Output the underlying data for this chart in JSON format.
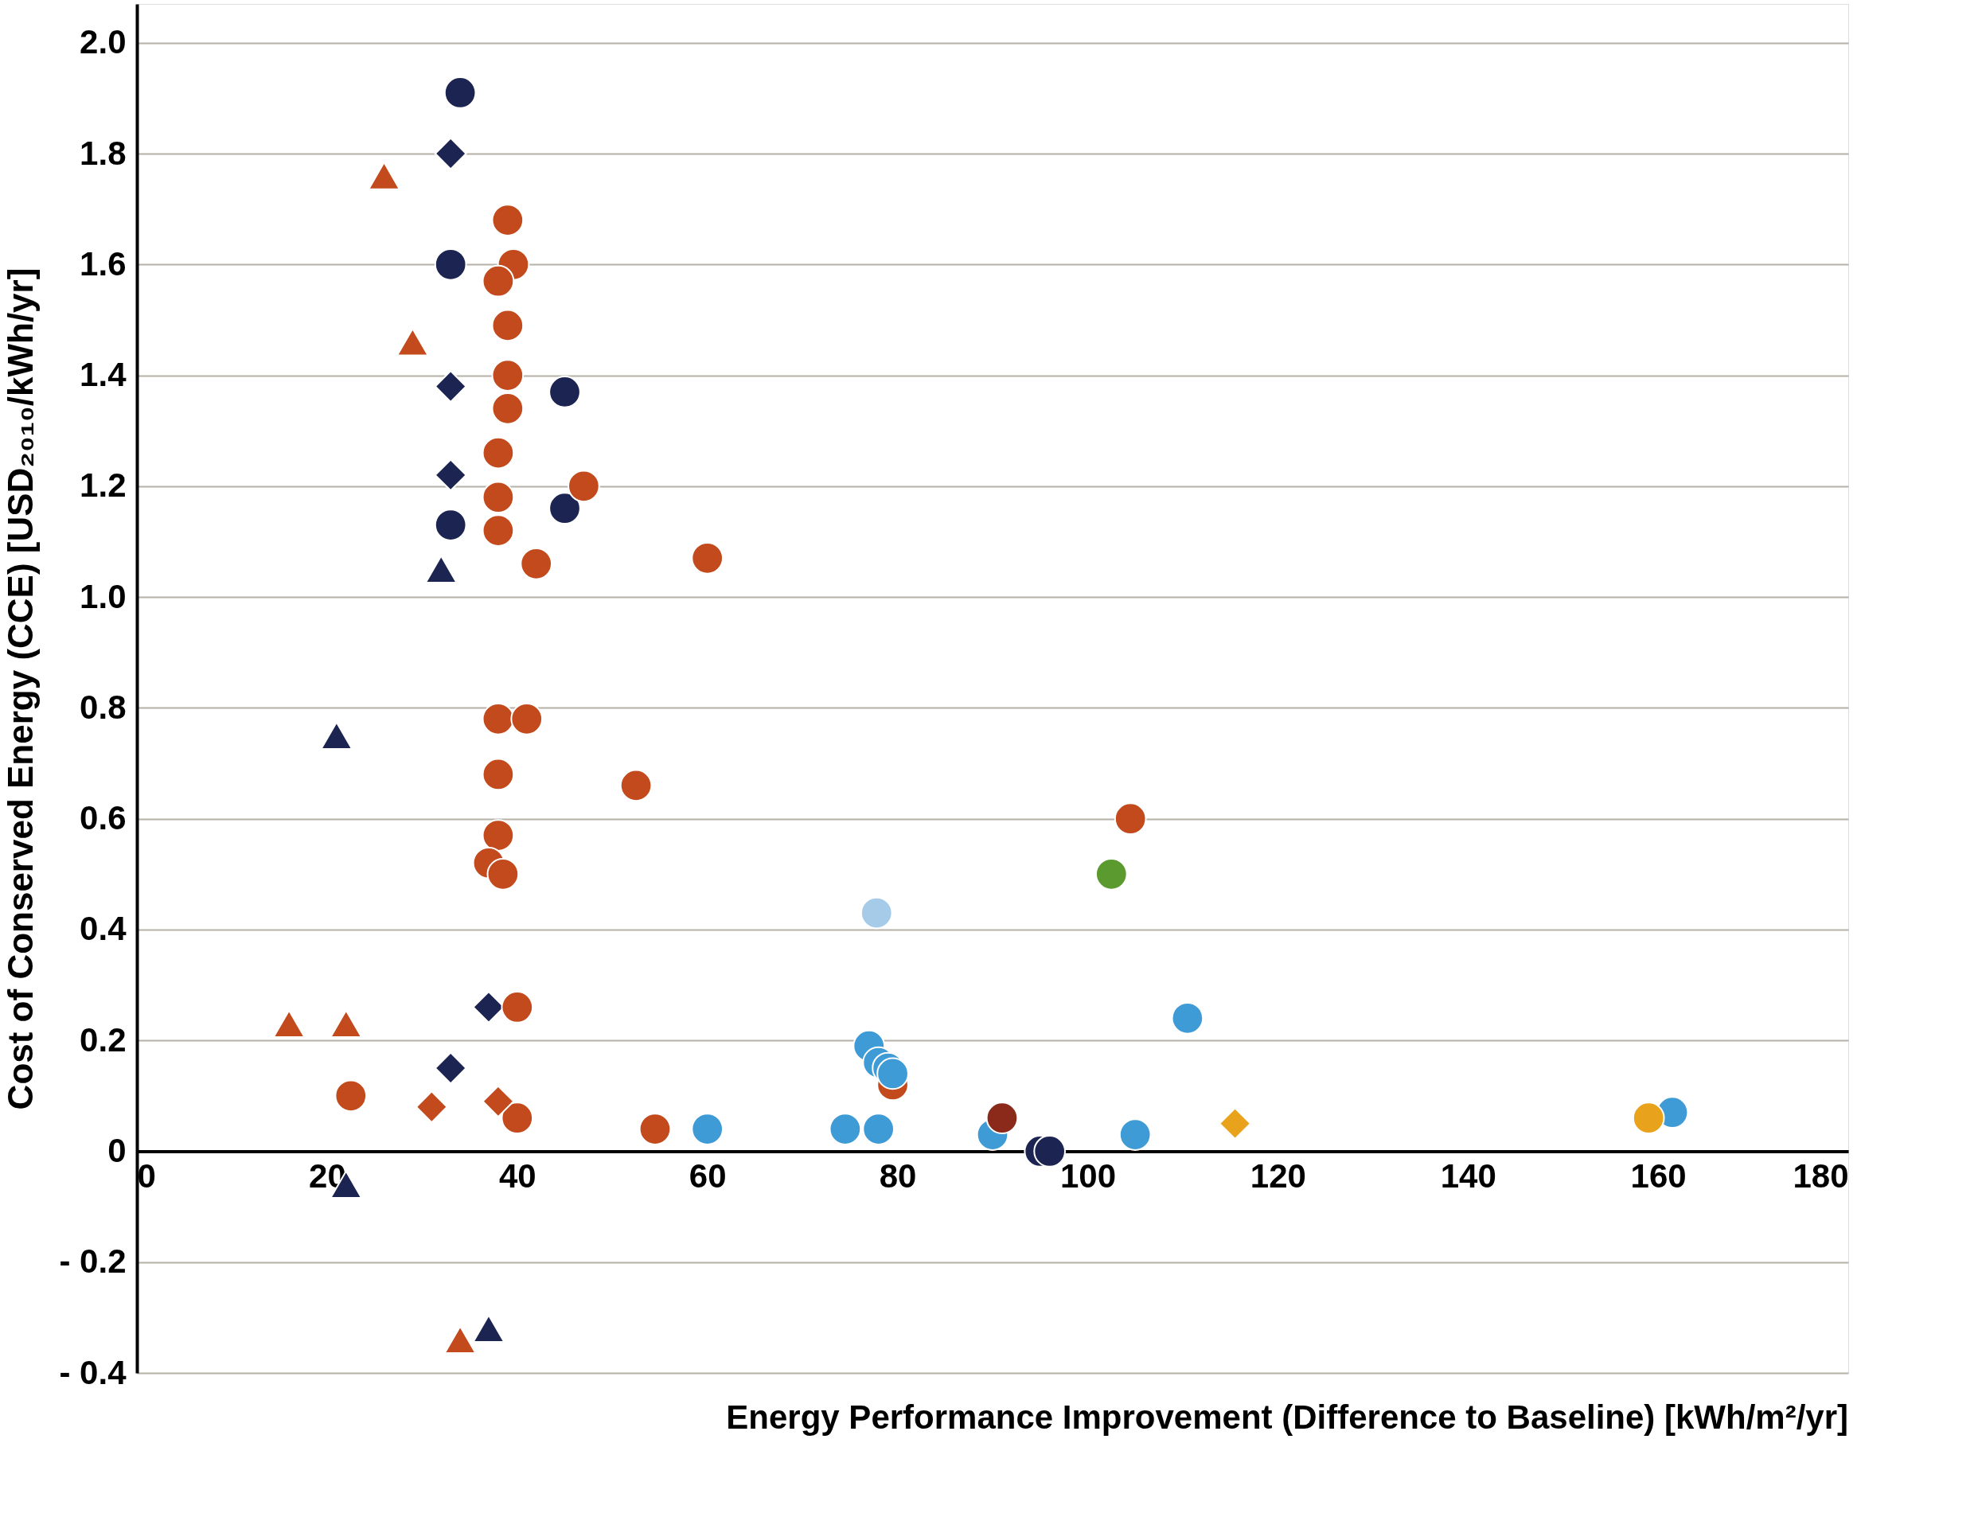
{
  "chart_data": {
    "type": "scatter",
    "xlabel": "Energy Performance Improvement (Difference to Baseline) [kWh/m²/yr]",
    "ylabel": "Cost of Conserved Energy (CCE) [USD₂₀₁₀/kWh/yr]",
    "xlim": [
      0,
      180
    ],
    "ylim": [
      -0.4,
      2.07
    ],
    "xticks": [
      0,
      20,
      40,
      60,
      80,
      100,
      120,
      140,
      160,
      180
    ],
    "yticks": [
      {
        "value": -0.4,
        "label": "- 0.4"
      },
      {
        "value": -0.2,
        "label": "- 0.2"
      },
      0,
      0.2,
      0.4,
      0.6,
      0.8,
      {
        "value": 1.0,
        "label": "1.0"
      },
      1.2,
      1.4,
      1.6,
      1.8,
      {
        "value": 2.0,
        "label": "2.0"
      }
    ],
    "grid": "y",
    "series": [
      {
        "color": "#1c2452",
        "marker": "circle",
        "x": [
          34,
          33,
          45,
          33,
          45,
          95,
          96
        ],
        "values": [
          1.91,
          1.6,
          1.37,
          1.13,
          1.16,
          0.0,
          0.0
        ]
      },
      {
        "color": "#1c2452",
        "marker": "diamond",
        "x": [
          33,
          33,
          33,
          37,
          33
        ],
        "values": [
          1.8,
          1.38,
          1.22,
          0.26,
          0.15
        ]
      },
      {
        "color": "#1c2452",
        "marker": "triangle",
        "x": [
          32,
          21,
          22,
          37
        ],
        "values": [
          1.05,
          0.75,
          -0.06,
          -0.32
        ]
      },
      {
        "color": "#c24a1c",
        "marker": "circle",
        "x": [
          39,
          39.6,
          38,
          39,
          39,
          39,
          38,
          38,
          38,
          42,
          47,
          60,
          38,
          41,
          38,
          52.5,
          38,
          37,
          38.5,
          104.5,
          40,
          40,
          54.5,
          79.5,
          22.5
        ],
        "values": [
          1.68,
          1.6,
          1.57,
          1.49,
          1.4,
          1.34,
          1.26,
          1.18,
          1.12,
          1.06,
          1.2,
          1.07,
          0.78,
          0.78,
          0.68,
          0.66,
          0.57,
          0.52,
          0.5,
          0.6,
          0.26,
          0.06,
          0.04,
          0.12,
          0.1
        ]
      },
      {
        "color": "#c24a1c",
        "marker": "triangle",
        "x": [
          26,
          29,
          16,
          22,
          34
        ],
        "values": [
          1.76,
          1.46,
          0.23,
          0.23,
          -0.34
        ]
      },
      {
        "color": "#c24a1c",
        "marker": "diamond",
        "x": [
          31,
          38
        ],
        "values": [
          0.08,
          0.09
        ]
      },
      {
        "color": "#3e9bd5",
        "marker": "circle",
        "x": [
          60,
          74.5,
          78,
          90,
          105,
          110.5,
          161.5,
          77,
          78,
          79,
          79.5
        ],
        "values": [
          0.04,
          0.04,
          0.04,
          0.03,
          0.03,
          0.24,
          0.07,
          0.19,
          0.16,
          0.15,
          0.14
        ]
      },
      {
        "color": "#a6cbe9",
        "marker": "circle",
        "x": [
          77.8
        ],
        "values": [
          0.43
        ]
      },
      {
        "color": "#5a9a2e",
        "marker": "circle",
        "x": [
          102.5
        ],
        "values": [
          0.5
        ]
      },
      {
        "color": "#e8a21c",
        "marker": "diamond",
        "x": [
          115.5
        ],
        "values": [
          0.05
        ]
      },
      {
        "color": "#e8a21c",
        "marker": "circle",
        "x": [
          159
        ],
        "values": [
          0.06
        ]
      },
      {
        "color": "#8b2a1a",
        "marker": "circle",
        "x": [
          91
        ],
        "values": [
          0.06
        ]
      }
    ]
  }
}
